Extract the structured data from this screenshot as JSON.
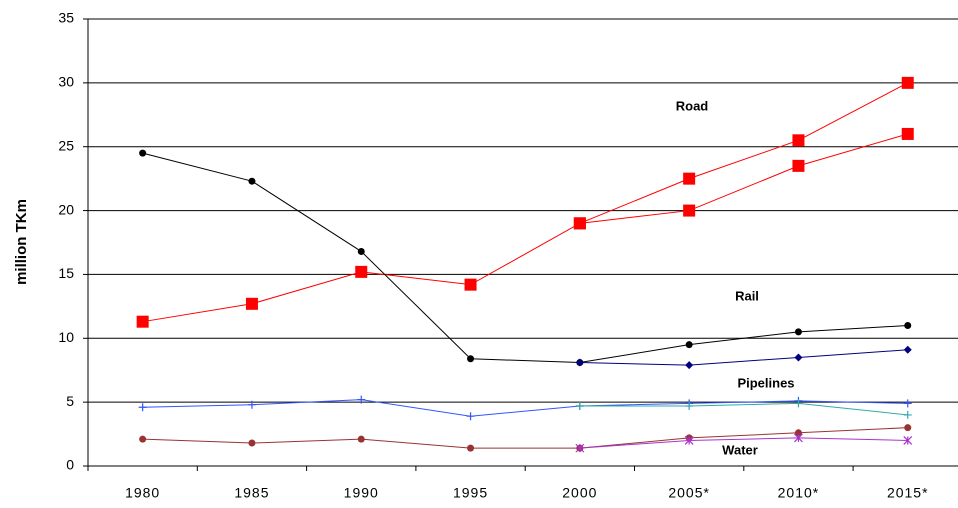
{
  "chart_data": {
    "type": "line",
    "y_label": "million TKm",
    "categories": [
      "1980",
      "1985",
      "1990",
      "1995",
      "2000",
      "2005*",
      "2010*",
      "2015*"
    ],
    "series": [
      {
        "color": "#ff0000",
        "marker": "square",
        "values": [
          11.3,
          12.7,
          15.2,
          14.2,
          19.0,
          22.5,
          25.5,
          30.0
        ]
      },
      {
        "color": "#ff0000",
        "marker": "square",
        "values": [
          null,
          null,
          null,
          null,
          19.0,
          20.0,
          23.5,
          26.0
        ]
      },
      {
        "color": "#000000",
        "marker": "circle",
        "values": [
          24.5,
          22.3,
          16.8,
          8.4,
          8.1,
          9.5,
          10.5,
          11.0
        ]
      },
      {
        "color": "#000080",
        "marker": "diamond",
        "values": [
          null,
          null,
          null,
          null,
          8.1,
          7.9,
          8.5,
          9.1
        ]
      },
      {
        "color": "#3355ff",
        "marker": "plus",
        "values": [
          4.6,
          4.8,
          5.2,
          3.9,
          4.7,
          4.9,
          5.1,
          4.9
        ]
      },
      {
        "color": "#33aaaa",
        "marker": "plus",
        "values": [
          null,
          null,
          null,
          null,
          4.7,
          4.7,
          4.9,
          4.0
        ]
      },
      {
        "color": "#993333",
        "marker": "circle",
        "values": [
          2.1,
          1.8,
          2.1,
          1.4,
          1.4,
          2.2,
          2.6,
          3.0
        ]
      },
      {
        "color": "#aa33cc",
        "marker": "star",
        "values": [
          null,
          null,
          null,
          null,
          1.4,
          2.0,
          2.2,
          2.0
        ]
      }
    ],
    "annotations": [
      "Road",
      "Rail",
      "Pipelines",
      "Water"
    ],
    "ylim": [
      0,
      35
    ],
    "yticks": [
      0,
      5,
      10,
      15,
      20,
      25,
      30,
      35
    ],
    "grid": true
  }
}
